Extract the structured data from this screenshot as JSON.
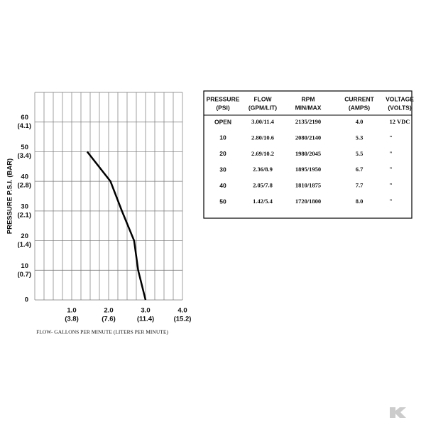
{
  "chart_data": {
    "type": "line",
    "ylabel": "PRESSURE  P.S.I.   (BAR)",
    "xlabel": "FLOW- GALLONS PER MINUTE (LITERS PER MINUTE)",
    "x": [
      3.0,
      2.8,
      2.69,
      2.36,
      2.05,
      1.42
    ],
    "series": [
      {
        "color": "#000000",
        "values": [
          0,
          10,
          20,
          30,
          40,
          50
        ]
      }
    ],
    "xlim": [
      0,
      4.0
    ],
    "ylim": [
      0,
      70
    ],
    "xticks": [
      {
        "value": 1,
        "label": "1.0"
      },
      {
        "value": 2,
        "label": "2.0"
      },
      {
        "value": 3,
        "label": "3.0"
      },
      {
        "value": 4,
        "label": "4.0"
      }
    ],
    "xtick_sublabels": [
      "(3.8)",
      "(7.6)",
      "(11.4)",
      "(15.2)"
    ],
    "yticks": [
      0,
      10,
      20,
      30,
      40,
      50,
      60
    ],
    "ytick_sublabels": [
      null,
      "(0.7)",
      "(1.4)",
      "(2.1)",
      "(2.8)",
      "(3.4)",
      "(4.1)"
    ],
    "xgrid_step": 0.25,
    "grid": true
  },
  "table": {
    "header": [
      [
        "PRESSURE",
        "(PSI)"
      ],
      [
        "FLOW",
        "(GPM/LIT)"
      ],
      [
        "RPM",
        "MIN/MAX"
      ],
      [
        "CURRENT",
        "(AMPS)"
      ],
      [
        "VOLTAGE",
        "(VOLTS)"
      ]
    ],
    "rows": [
      [
        "OPEN",
        "3.00/11.4",
        "2135/2190",
        "4.0",
        "12 VDC"
      ],
      [
        "10",
        "2.80/10.6",
        "2080/2140",
        "5.3",
        "\""
      ],
      [
        "20",
        "2.69/10.2",
        "1980/2045",
        "5.5",
        "\""
      ],
      [
        "30",
        "2.36/8.9",
        "1895/1950",
        "6.7",
        "\""
      ],
      [
        "40",
        "2.05/7.8",
        "1810/1875",
        "7.7",
        "\""
      ],
      [
        "50",
        "1.42/5.4",
        "1720/1800",
        "8.0",
        "\""
      ]
    ]
  }
}
